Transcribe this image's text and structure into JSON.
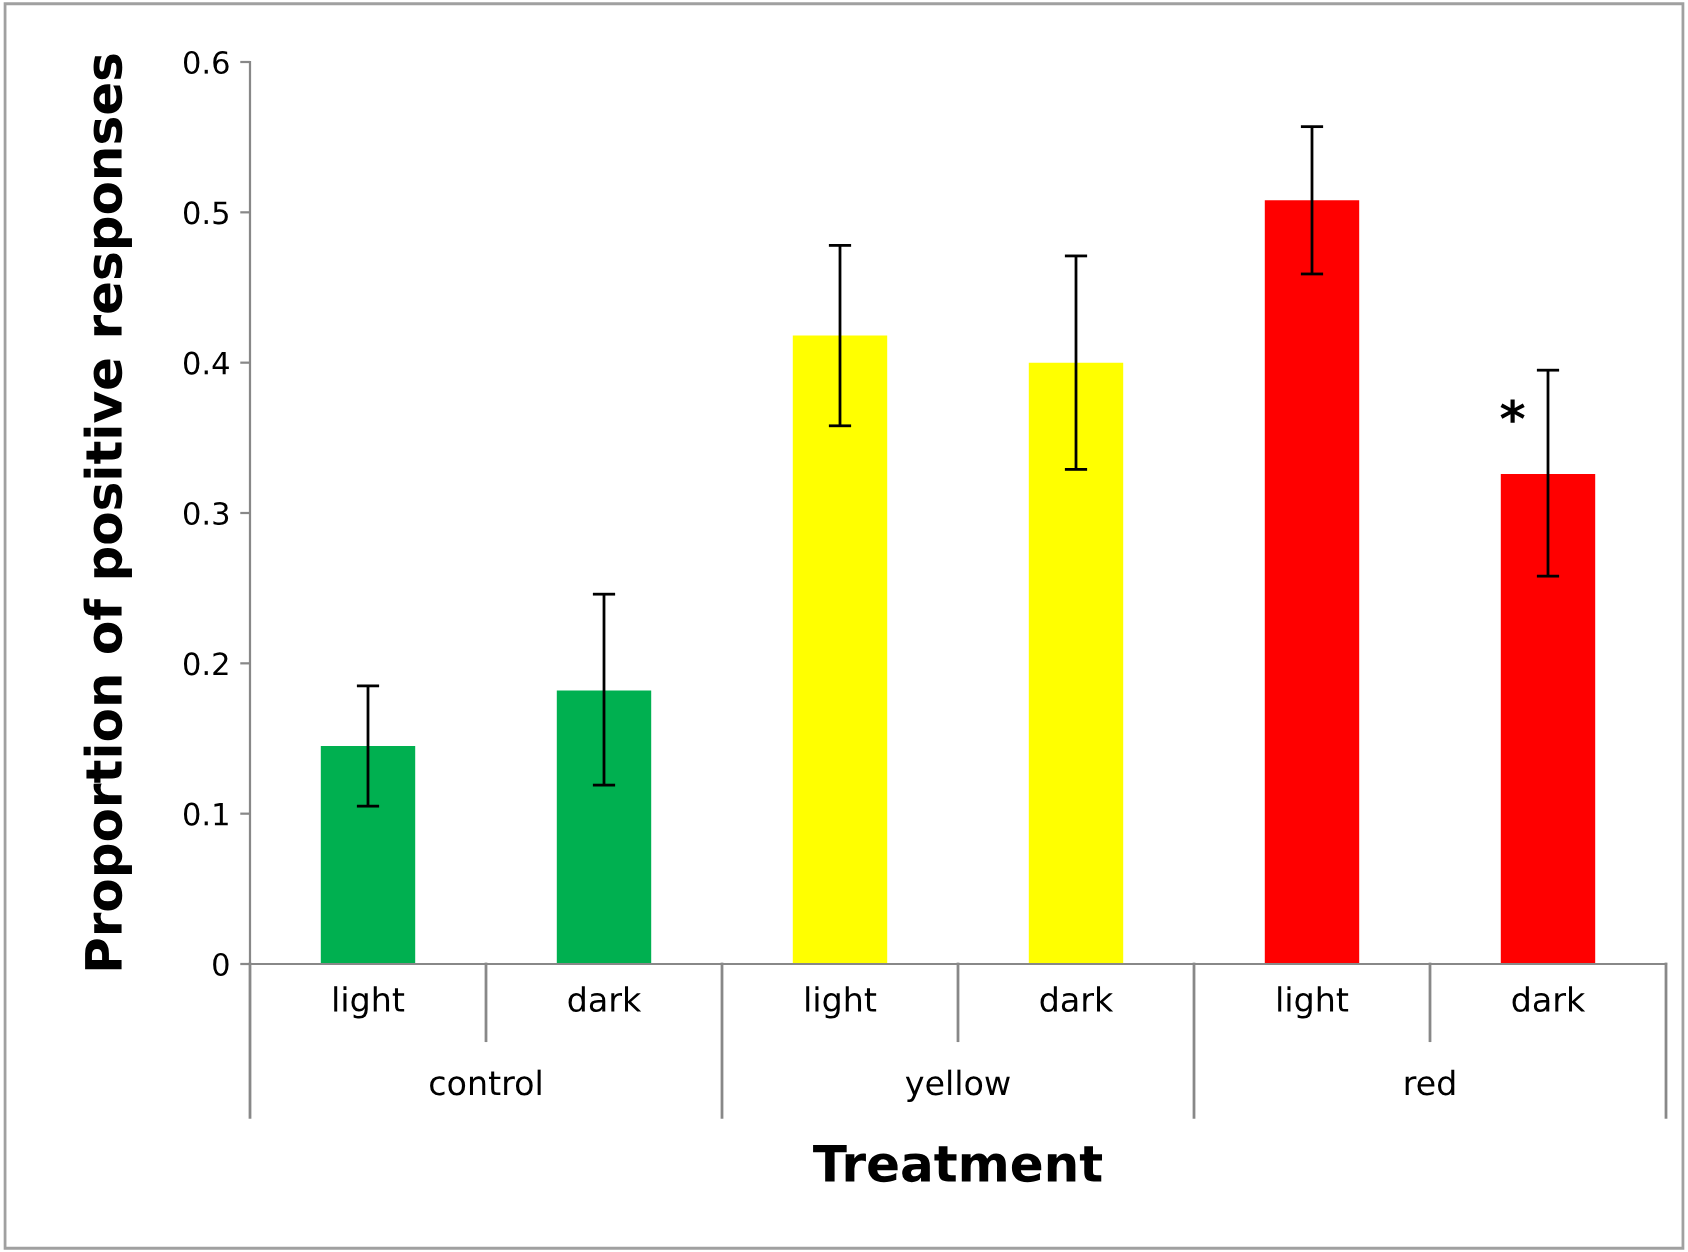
{
  "chart_data": {
    "type": "bar",
    "xlabel": "Treatment",
    "ylabel": "Proportion of positive responses",
    "categories": [
      "light",
      "dark",
      "light",
      "dark",
      "light",
      "dark"
    ],
    "values": [
      0.145,
      0.182,
      0.418,
      0.4,
      0.508,
      0.326
    ],
    "colors": [
      "#00b050",
      "#00b050",
      "#ffff00",
      "#ffff00",
      "#ff0000",
      "#ff0000"
    ],
    "errors": [
      [
        0.105,
        0.185
      ],
      [
        0.119,
        0.246
      ],
      [
        0.358,
        0.478
      ],
      [
        0.329,
        0.471
      ],
      [
        0.459,
        0.557
      ],
      [
        0.258,
        0.395
      ]
    ],
    "annotations": [
      "control",
      "yellow",
      "red",
      "*"
    ],
    "ylim": [
      0,
      0.6
    ],
    "yticks": [
      0,
      0.1,
      0.2,
      0.3,
      0.4,
      0.5,
      0.6
    ],
    "grid": false,
    "legend": false
  }
}
